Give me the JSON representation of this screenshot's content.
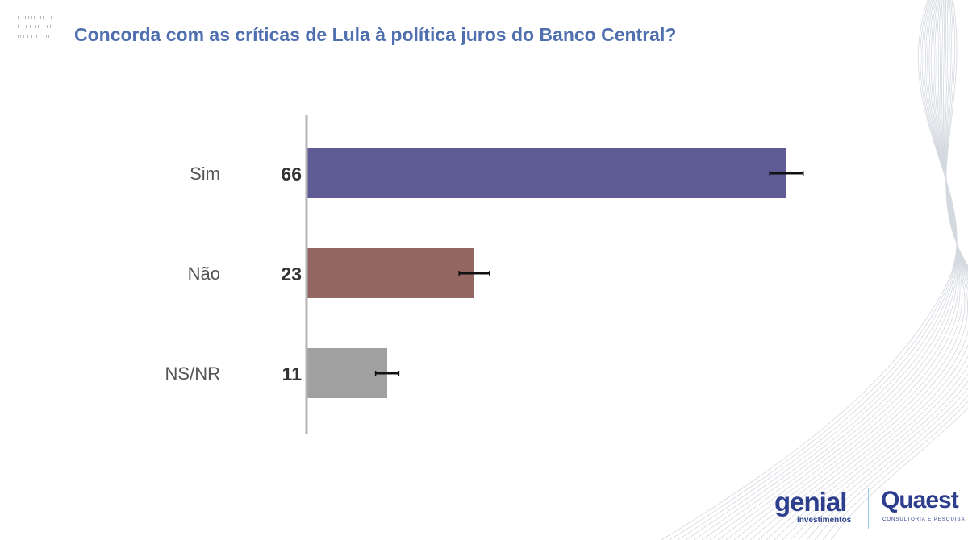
{
  "title": "Concorda com as críticas de Lula à política juros do Banco Central?",
  "logos": {
    "genial": "genial",
    "genial_sub": "investimentos",
    "quaest": "Quaest",
    "quaest_sub": "CONSULTORIA E PESQUISA"
  },
  "chart_data": {
    "type": "bar",
    "orientation": "horizontal",
    "title": "Concorda com as críticas de Lula à política juros do Banco Central?",
    "categories": [
      "Sim",
      "Não",
      "NS/NR"
    ],
    "values": [
      66,
      23,
      11
    ],
    "value_labels": [
      "66",
      "23",
      "11"
    ],
    "error_margin": [
      2.3,
      2.1,
      1.6
    ],
    "colors": [
      "#5e5b95",
      "#946661",
      "#a0a0a0"
    ],
    "xlim": [
      0,
      90
    ],
    "grid": false
  }
}
